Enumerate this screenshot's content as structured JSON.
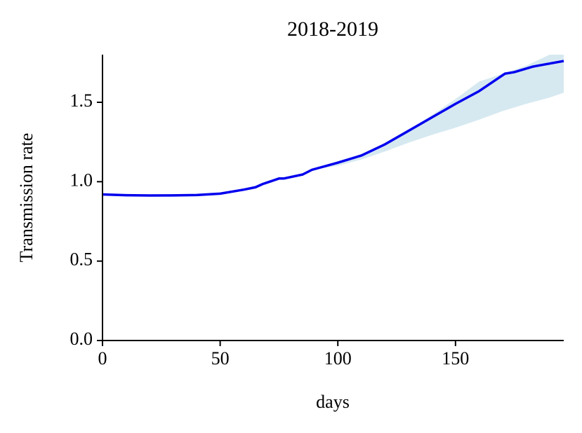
{
  "chart_data": {
    "type": "line",
    "title": "2018-2019",
    "x_label": "days",
    "y_label": "Transmission rate",
    "x": [
      0,
      10,
      20,
      30,
      40,
      50,
      60,
      65,
      68,
      75,
      77,
      85,
      89,
      100,
      110,
      120,
      130,
      140,
      150,
      160,
      171,
      175,
      183,
      196
    ],
    "series": [
      {
        "color": "#0000ee",
        "values": [
          0.92,
          0.915,
          0.913,
          0.914,
          0.916,
          0.925,
          0.95,
          0.965,
          0.985,
          1.02,
          1.02,
          1.045,
          1.075,
          1.12,
          1.165,
          1.235,
          1.32,
          1.405,
          1.49,
          1.57,
          1.68,
          1.69,
          1.725,
          1.76
        ]
      }
    ],
    "band": {
      "color": "#d6e9f1",
      "x": [
        89,
        100,
        110,
        120,
        130,
        140,
        150,
        160,
        170,
        180,
        190,
        196
      ],
      "lower": [
        1.075,
        1.1,
        1.14,
        1.19,
        1.245,
        1.295,
        1.34,
        1.39,
        1.445,
        1.49,
        1.53,
        1.56
      ],
      "upper": [
        1.075,
        1.13,
        1.17,
        1.24,
        1.32,
        1.42,
        1.52,
        1.63,
        1.68,
        1.73,
        1.8,
        1.8
      ]
    },
    "xlim": [
      0,
      196
    ],
    "ylim": [
      0,
      1.8
    ],
    "xticks": [
      0,
      50,
      100,
      150
    ],
    "yticks": [
      {
        "value": 0,
        "label": "0.0"
      },
      0.5,
      {
        "value": 1,
        "label": "1.0"
      },
      1.5
    ]
  }
}
